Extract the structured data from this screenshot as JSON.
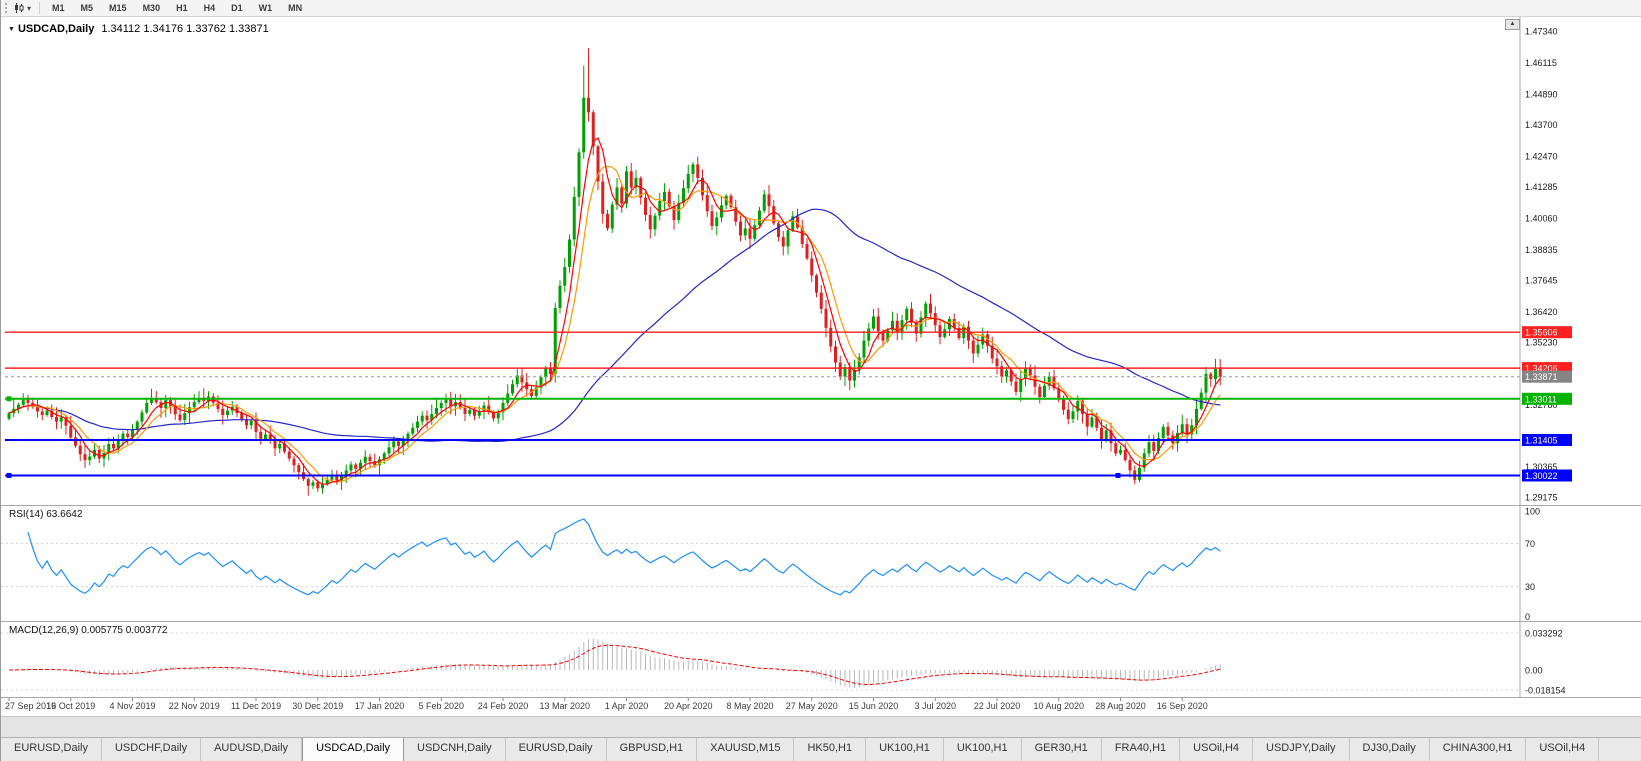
{
  "colors": {
    "bull": "#00a000",
    "bear": "#e02020",
    "rsi_line": "#1e90ff",
    "macd_hist": "#b8b8b8",
    "macd_signal": "#ff0000",
    "price_label_bg": "#858585",
    "axis_text": "#1a1a1a",
    "date_text": "#3c3c3c"
  },
  "icons": {
    "symbol_marker": "▼",
    "dropdown": "▾",
    "scroll_up": "▲"
  },
  "toolbar": {
    "timeframes": [
      "M1",
      "M5",
      "M15",
      "M30",
      "H1",
      "H4",
      "D1",
      "W1",
      "MN"
    ]
  },
  "chart": {
    "title": "USDCAD,Daily",
    "ohlc": "1.34112 1.34176 1.33762 1.33871"
  },
  "rsi_panel": {
    "label": "RSI(14) 63.6642",
    "period": 14,
    "axis_labels": [
      "100",
      "70",
      "30",
      "0"
    ]
  },
  "macd_panel": {
    "label": "MACD(12,26,9) 0.005775 0.003772",
    "fast": 12,
    "slow": 26,
    "signal": 9,
    "axis_labels": [
      "0.033292",
      "0.00",
      "-0.018154"
    ]
  },
  "tabs": [
    {
      "label": "EURUSD,Daily"
    },
    {
      "label": "USDCHF,Daily"
    },
    {
      "label": "AUDUSD,Daily"
    },
    {
      "label": "USDCAD,Daily",
      "active": true
    },
    {
      "label": "USDCNH,Daily"
    },
    {
      "label": "EURUSD,Daily"
    },
    {
      "label": "GBPUSD,H1"
    },
    {
      "label": "XAUUSD,M15"
    },
    {
      "label": "HK50,H1"
    },
    {
      "label": "UK100,H1"
    },
    {
      "label": "UK100,H1"
    },
    {
      "label": "GER30,H1"
    },
    {
      "label": "FRA40,H1"
    },
    {
      "label": "USOil,H4"
    },
    {
      "label": "USDJPY,Daily"
    },
    {
      "label": "DJ30,Daily"
    },
    {
      "label": "CHINA300,H1"
    },
    {
      "label": "USOil,H4"
    }
  ],
  "chart_data": {
    "type": "candlestick",
    "symbol": "USDCAD",
    "period": "Daily",
    "ylim": [
      1.2887,
      1.477
    ],
    "y_axis_labels": [
      "1.47340",
      "1.46115",
      "1.44890",
      "1.43700",
      "1.42470",
      "1.41285",
      "1.40060",
      "1.38835",
      "1.37645",
      "1.36420",
      "1.35230",
      "1.32780",
      "1.30365",
      "1.29175"
    ],
    "x_labels": [
      "27 Sep 2019",
      "16 Oct 2019",
      "4 Nov 2019",
      "22 Nov 2019",
      "11 Dec 2019",
      "30 Dec 2019",
      "17 Jan 2020",
      "5 Feb 2020",
      "24 Feb 2020",
      "13 Mar 2020",
      "1 Apr 2020",
      "20 Apr 2020",
      "8 May 2020",
      "27 May 2020",
      "15 Jun 2020",
      "3 Jul 2020",
      "22 Jul 2020",
      "10 Aug 2020",
      "28 Aug 2020",
      "16 Sep 2020"
    ],
    "bars_per_label": 13,
    "current_price": {
      "value": 1.33871,
      "label": "1.33871"
    },
    "hlines": [
      {
        "value": 1.35606,
        "label": "1.35606",
        "color": "#ff2020",
        "width": 1.4
      },
      {
        "value": 1.34206,
        "label": "1.34206",
        "color": "#ff2020",
        "width": 1.4
      },
      {
        "value": 1.33011,
        "label": "1.33011",
        "color": "#00b400",
        "width": 2,
        "handles": [
          8
        ]
      },
      {
        "value": 1.31405,
        "label": "1.31405",
        "color": "#0000ff",
        "width": 2
      },
      {
        "value": 1.30022,
        "label": "1.30022",
        "color": "#0000ff",
        "width": 2,
        "handles": [
          8,
          1117
        ]
      }
    ],
    "moving_averages": [
      {
        "period": 55,
        "color": "#2525cc"
      },
      {
        "period": 8,
        "color": "#ff9900"
      },
      {
        "period": 5,
        "color": "#ff0000"
      }
    ],
    "high_overrides": {
      "121": 1.46,
      "122": 1.4668
    },
    "low_overrides": {
      "65": 1.2938,
      "237": 1.2968
    },
    "closes": [
      1.3245,
      1.3262,
      1.3278,
      1.3298,
      1.3285,
      1.327,
      1.3252,
      1.3238,
      1.3255,
      1.323,
      1.3212,
      1.3228,
      1.3196,
      1.315,
      1.3118,
      1.3085,
      1.3062,
      1.3076,
      1.3102,
      1.3068,
      1.309,
      1.3125,
      1.3108,
      1.3142,
      1.3165,
      1.3152,
      1.318,
      1.3212,
      1.3248,
      1.3285,
      1.3302,
      1.3288,
      1.3265,
      1.3296,
      1.3272,
      1.324,
      1.3218,
      1.3245,
      1.3268,
      1.3288,
      1.3305,
      1.3292,
      1.331,
      1.3286,
      1.3262,
      1.3238,
      1.3255,
      1.327,
      1.3246,
      1.3222,
      1.3198,
      1.3215,
      1.3172,
      1.3145,
      1.3162,
      1.3138,
      1.3108,
      1.3125,
      1.3095,
      1.3068,
      1.3042,
      1.3015,
      1.2988,
      1.2962,
      1.2975,
      1.2952,
      1.2968,
      1.2985,
      1.3005,
      1.2982,
      1.2998,
      1.3022,
      1.3045,
      1.3028,
      1.3052,
      1.3075,
      1.3058,
      1.3042,
      1.3065,
      1.3088,
      1.3112,
      1.3135,
      1.3118,
      1.3142,
      1.3165,
      1.3188,
      1.3212,
      1.3235,
      1.3218,
      1.3242,
      1.3265,
      1.3285,
      1.3298,
      1.3272,
      1.3288,
      1.3265,
      1.3242,
      1.3258,
      1.3235,
      1.3252,
      1.3275,
      1.3248,
      1.3225,
      1.3248,
      1.3285,
      1.3322,
      1.3358,
      1.3392,
      1.3365,
      1.3338,
      1.3312,
      1.3345,
      1.3385,
      1.3422,
      1.3398,
      1.3655,
      1.3742,
      1.3815,
      1.3922,
      1.4088,
      1.4262,
      1.4475,
      1.4418,
      1.4285,
      1.4148,
      1.4022,
      1.3965,
      1.4058,
      1.4125,
      1.4062,
      1.4188,
      1.4125,
      1.4162,
      1.4085,
      1.4018,
      1.3962,
      1.4015,
      1.4072,
      1.4108,
      1.4052,
      1.3998,
      1.4065,
      1.4122,
      1.4178,
      1.4215,
      1.4162,
      1.4095,
      1.4032,
      1.3975,
      1.4008,
      1.4055,
      1.4092,
      1.4048,
      1.3992,
      1.3938,
      1.3965,
      1.3925,
      1.3978,
      1.4035,
      1.4098,
      1.4052,
      1.3985,
      1.3932,
      1.3895,
      1.3958,
      1.4012,
      1.3968,
      1.3905,
      1.3848,
      1.3782,
      1.3715,
      1.3652,
      1.3578,
      1.3505,
      1.3442,
      1.3388,
      1.3425,
      1.3372,
      1.3415,
      1.3462,
      1.3528,
      1.3575,
      1.3622,
      1.3565,
      1.3528,
      1.3568,
      1.3605,
      1.3562,
      1.3608,
      1.3652,
      1.3598,
      1.3555,
      1.3618,
      1.3672,
      1.3635,
      1.3588,
      1.3542,
      1.3572,
      1.3612,
      1.3578,
      1.3538,
      1.3582,
      1.3528,
      1.3478,
      1.3512,
      1.3552,
      1.3508,
      1.3458,
      1.3428,
      1.3388,
      1.3412,
      1.3368,
      1.3328,
      1.3378,
      1.3422,
      1.3392,
      1.3348,
      1.3308,
      1.3352,
      1.3388,
      1.3342,
      1.3298,
      1.3258,
      1.3222,
      1.3252,
      1.3292,
      1.3242,
      1.3192,
      1.3228,
      1.3188,
      1.3142,
      1.3178,
      1.3128,
      1.3088,
      1.3102,
      1.3062,
      1.3022,
      1.2985,
      1.3032,
      1.3088,
      1.3132,
      1.3098,
      1.3148,
      1.3192,
      1.3158,
      1.3128,
      1.3168,
      1.3202,
      1.3162,
      1.3198,
      1.3262,
      1.3325,
      1.3398,
      1.3378,
      1.3418,
      1.3387
    ]
  }
}
